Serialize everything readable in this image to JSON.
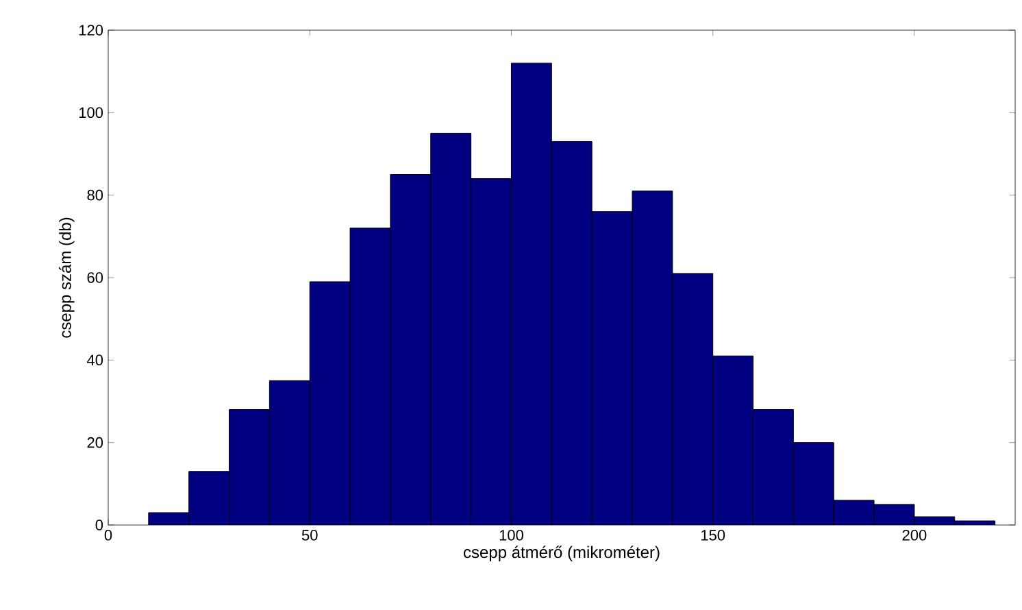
{
  "chart_data": {
    "type": "histogram",
    "xlabel": "csepp átmérő (mikrométer)",
    "ylabel": "csepp szám (db)",
    "bins": [
      10,
      20,
      30,
      40,
      50,
      60,
      70,
      80,
      90,
      100,
      110,
      120,
      130,
      140,
      150,
      160,
      170,
      180,
      190,
      200,
      210,
      220
    ],
    "values": [
      3,
      13,
      28,
      35,
      59,
      72,
      85,
      95,
      84,
      112,
      93,
      76,
      81,
      61,
      41,
      28,
      20,
      6,
      5,
      2,
      1
    ],
    "color": "#000080",
    "xlim": [
      0,
      225
    ],
    "ylim": [
      0,
      120
    ],
    "xticks": [
      0,
      50,
      100,
      150,
      200
    ],
    "yticks": [
      0,
      20,
      40,
      60,
      80,
      100,
      120
    ],
    "grid": false
  }
}
